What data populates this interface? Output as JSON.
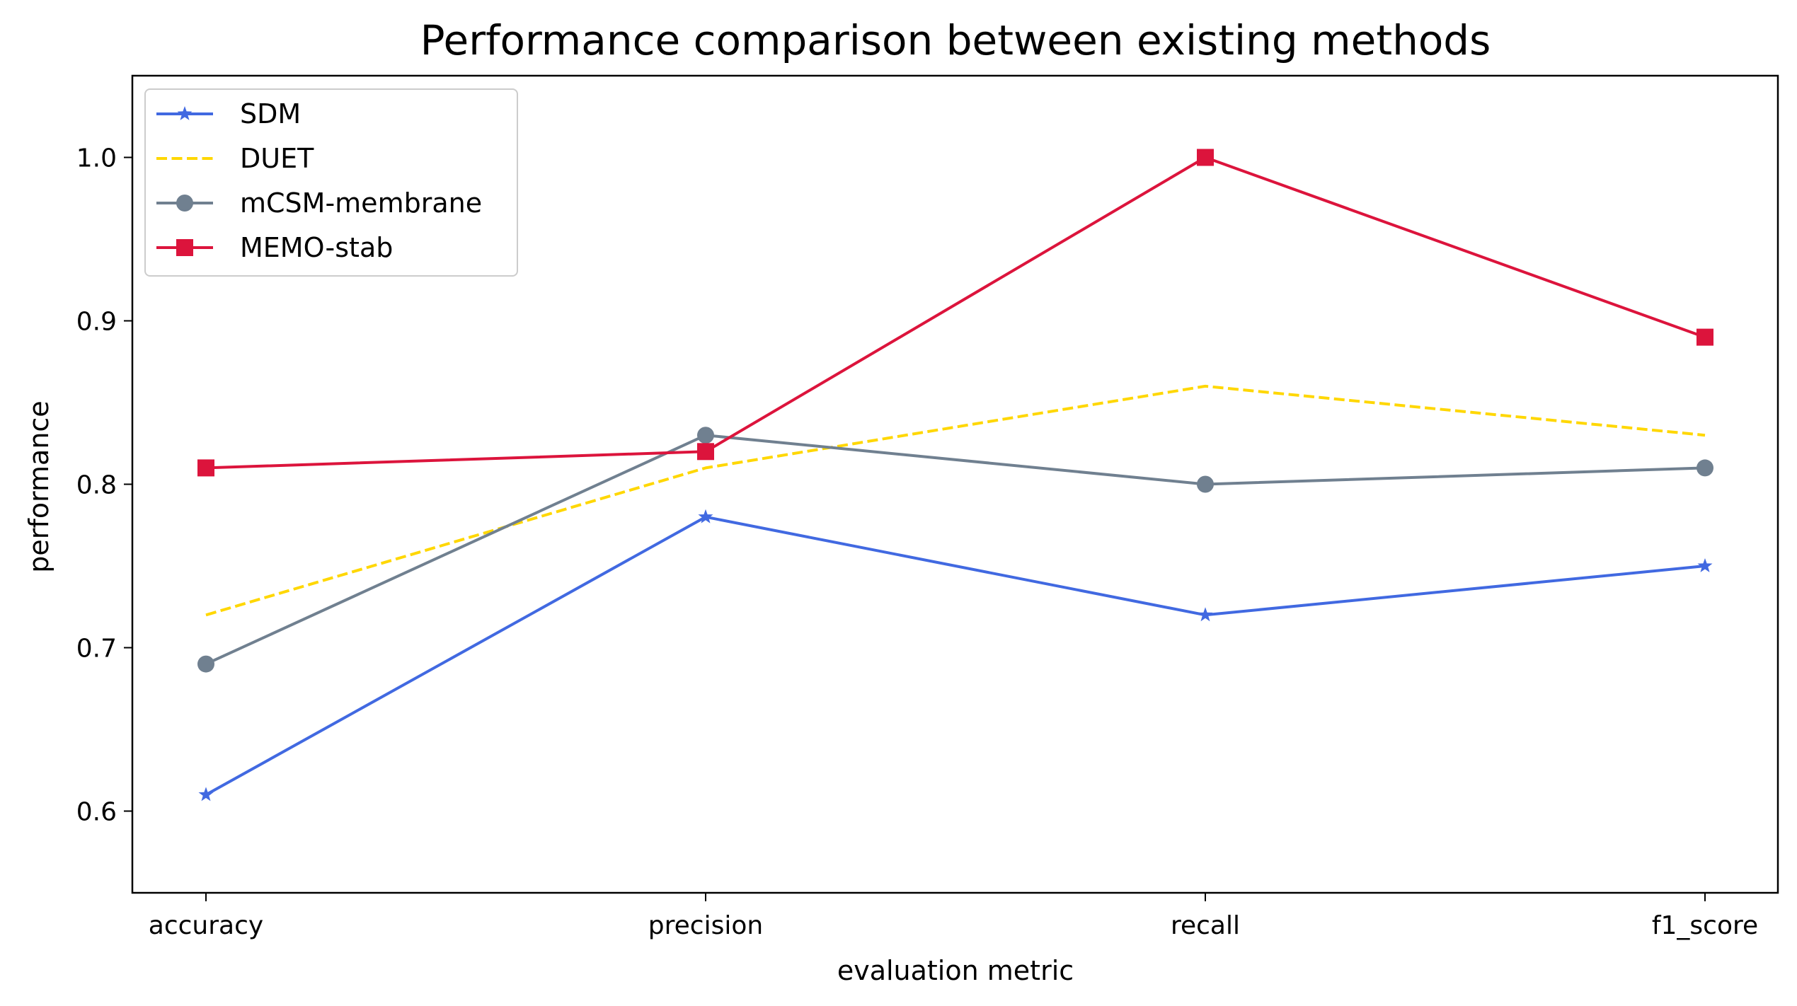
{
  "chart_data": {
    "type": "line",
    "title": "Performance comparison between existing methods",
    "xlabel": "evaluation metric",
    "ylabel": "performance",
    "categories": [
      "accuracy",
      "precision",
      "recall",
      "f1_score"
    ],
    "ylim": [
      0.55,
      1.05
    ],
    "yticks": [
      0.6,
      0.7,
      0.8,
      0.9,
      1.0
    ],
    "ytick_labels": [
      "0.6",
      "0.7",
      "0.8",
      "0.9",
      "1.0"
    ],
    "grid": false,
    "legend_position": "top-left",
    "series": [
      {
        "name": "SDM",
        "values": [
          0.61,
          0.78,
          0.72,
          0.75
        ],
        "color": "#4169E1",
        "linestyle": "solid",
        "marker": "star"
      },
      {
        "name": "DUET",
        "values": [
          0.72,
          0.81,
          0.86,
          0.83
        ],
        "color": "#FFD700",
        "linestyle": "dashed",
        "marker": "none"
      },
      {
        "name": "mCSM-membrane",
        "values": [
          0.69,
          0.83,
          0.8,
          0.81
        ],
        "color": "#708090",
        "linestyle": "solid",
        "marker": "circle"
      },
      {
        "name": "MEMO-stab",
        "values": [
          0.81,
          0.82,
          1.0,
          0.89
        ],
        "color": "#DC143C",
        "linestyle": "solid",
        "marker": "square"
      }
    ]
  }
}
